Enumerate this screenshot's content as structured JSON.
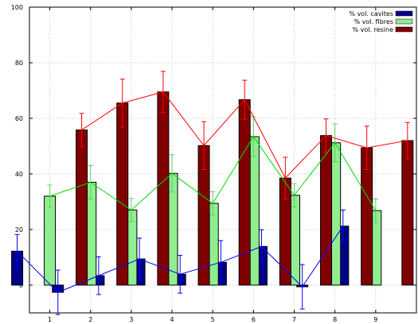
{
  "chart_data": {
    "type": "bar",
    "title": "",
    "xlabel": "",
    "ylabel": "",
    "categories": [
      "1",
      "2",
      "3",
      "4",
      "5",
      "6",
      "7",
      "8",
      "9"
    ],
    "ylim": [
      -10,
      100
    ],
    "yticks": [
      0,
      20,
      40,
      60,
      80,
      100
    ],
    "grid": true,
    "legend_position": "top-right",
    "series": [
      {
        "name": "% vol. cavites",
        "color": "#00008b",
        "values": [
          12.2,
          -2.6,
          3.4,
          9.4,
          3.9,
          8.2,
          13.9,
          -0.6,
          21.2
        ],
        "errors": [
          6.0,
          8.0,
          6.8,
          7.5,
          6.8,
          7.8,
          6.0,
          8.0,
          5.8
        ]
      },
      {
        "name": "% vol. fibres",
        "color": "#90ee90",
        "values": [
          32.0,
          37.0,
          27.0,
          40.2,
          29.4,
          53.4,
          32.3,
          51.2,
          26.8
        ],
        "errors": [
          4.0,
          6.0,
          4.2,
          6.7,
          4.2,
          7.2,
          4.2,
          6.8,
          4.2
        ]
      },
      {
        "name": "% vol. resine",
        "color": "#800000",
        "values": [
          55.8,
          65.5,
          69.5,
          50.2,
          66.7,
          38.5,
          53.8,
          49.4,
          52.0
        ],
        "errors": [
          6.0,
          8.6,
          7.4,
          8.6,
          7.0,
          7.5,
          6.0,
          7.8,
          6.5
        ]
      }
    ]
  }
}
